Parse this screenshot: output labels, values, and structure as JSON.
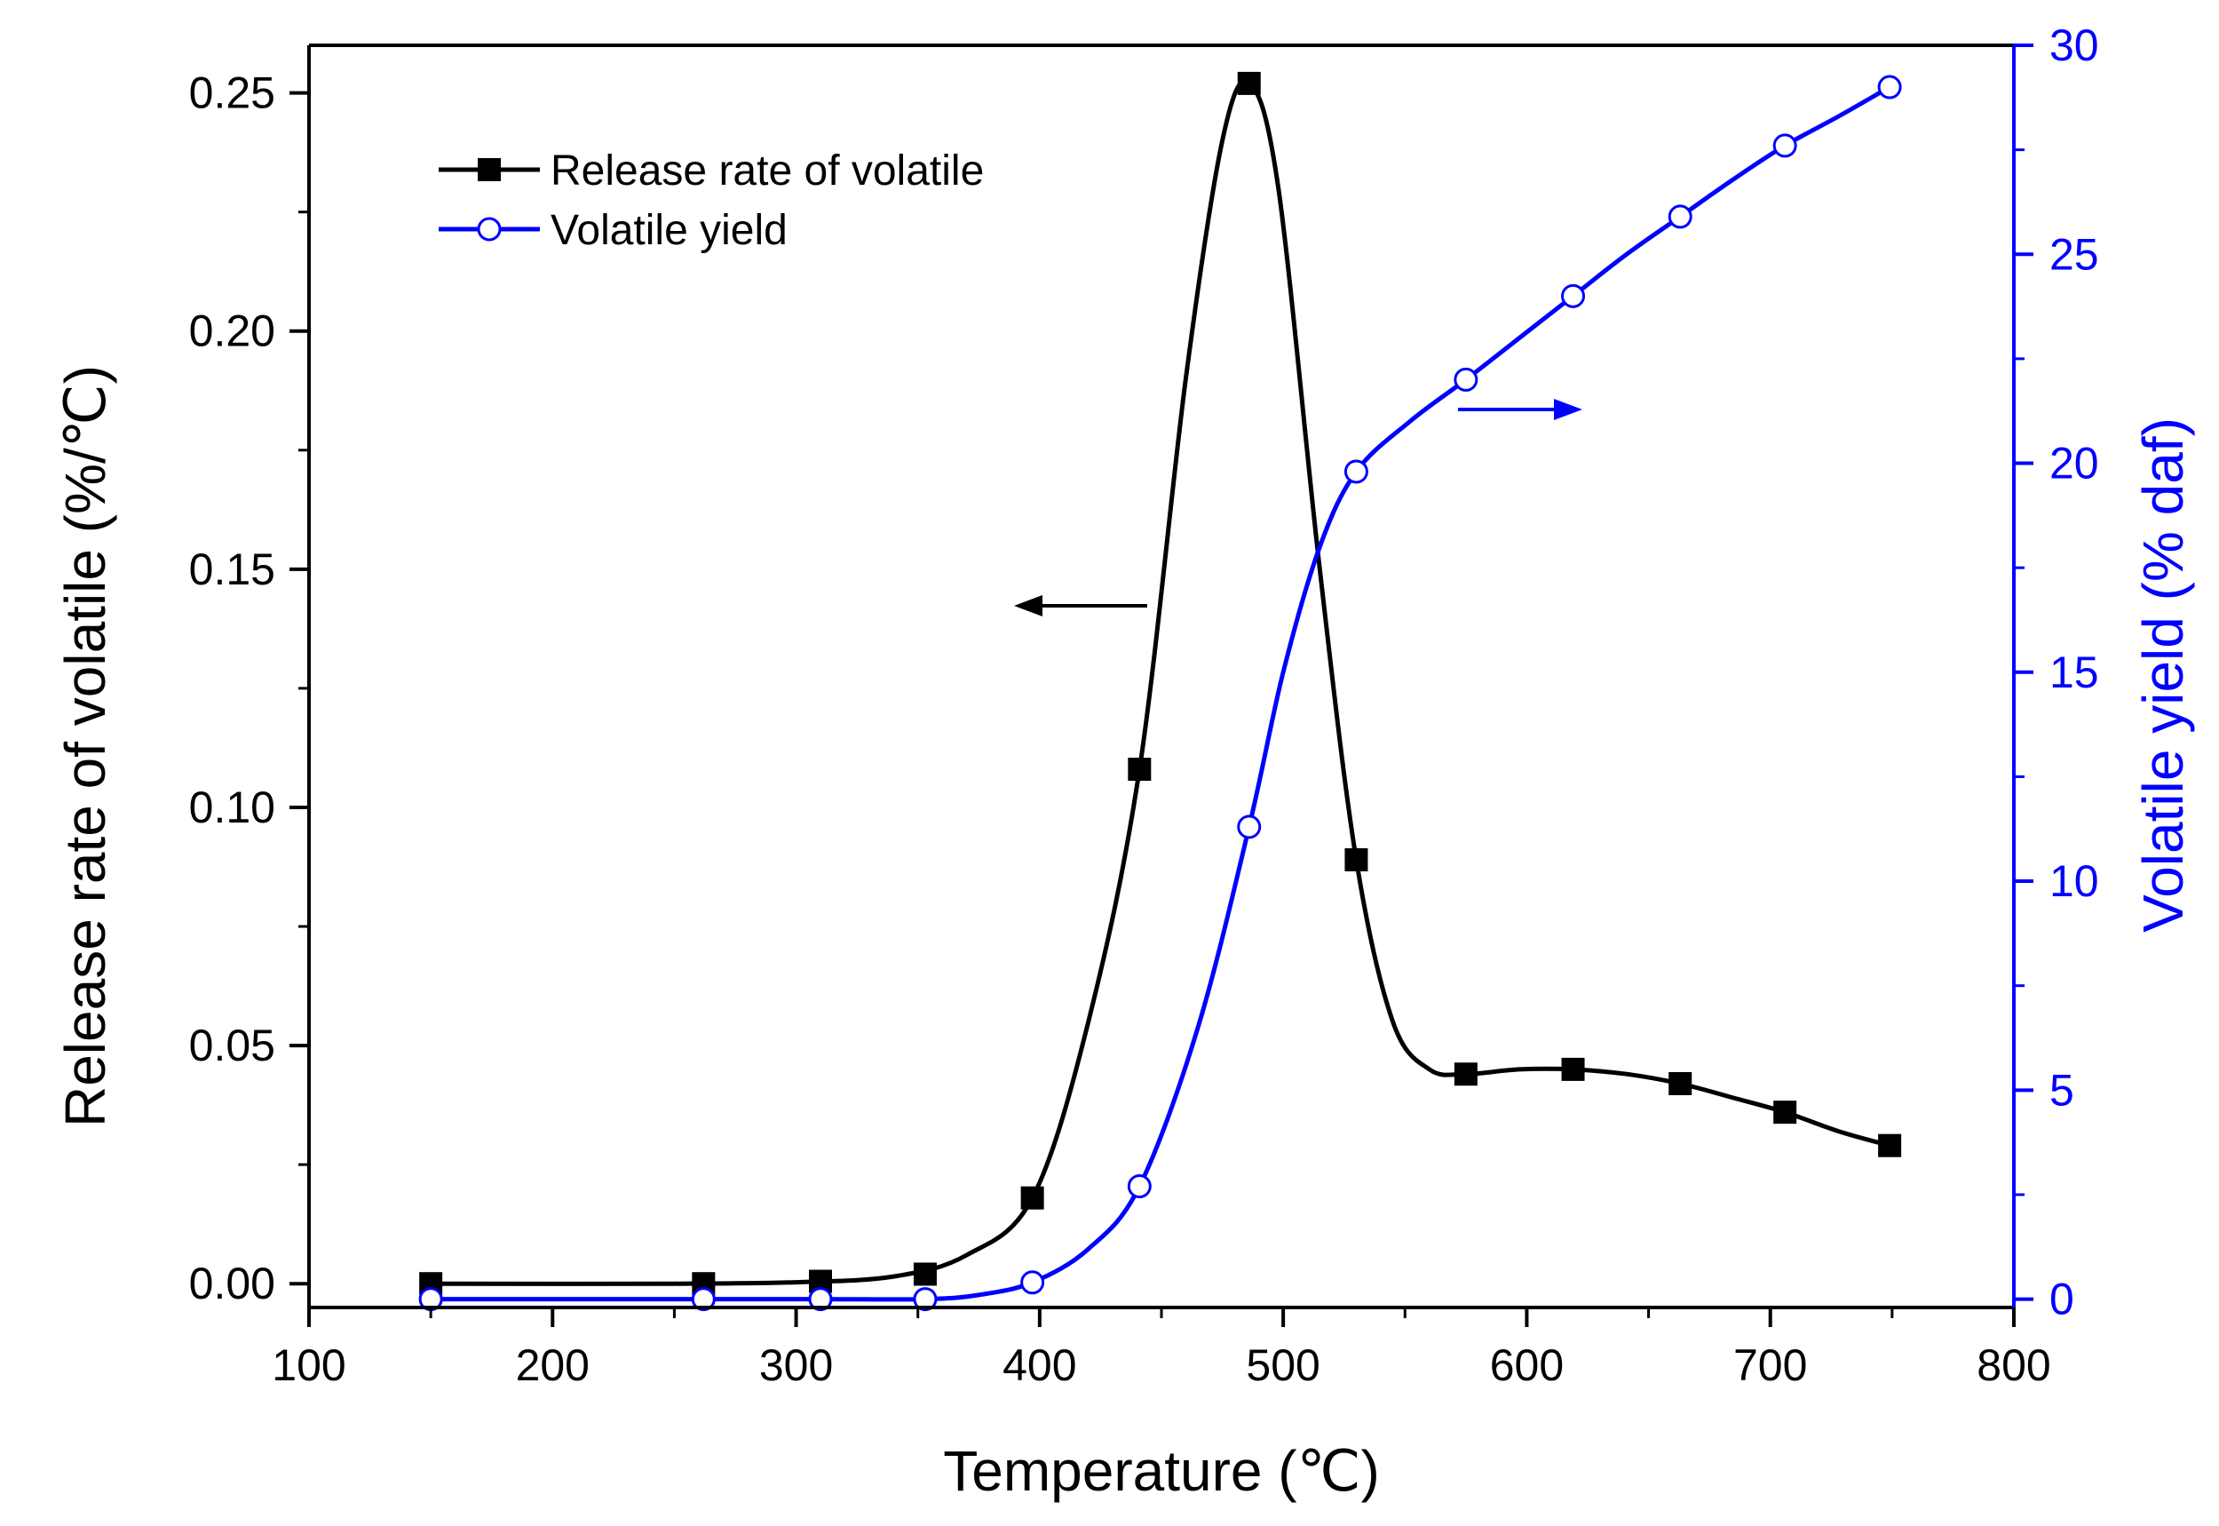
{
  "chart_data": {
    "type": "line",
    "title": "",
    "xlabel": "Temperature (℃)",
    "xlim": [
      100,
      800
    ],
    "x_ticks": [
      100,
      200,
      300,
      400,
      500,
      600,
      700,
      800
    ],
    "x_tick_labels": [
      "100",
      "200",
      "300",
      "400",
      "500",
      "600",
      "700",
      "800"
    ],
    "y_left": {
      "label": "Release rate of volatile (%/℃)",
      "lim": [
        -0.005,
        0.26
      ],
      "ticks": [
        0,
        0.05,
        0.1,
        0.15,
        0.2,
        0.25
      ],
      "tick_labels": [
        "0.00",
        "0.05",
        "0.10",
        "0.15",
        "0.20",
        "0.25"
      ],
      "color": "#000000"
    },
    "y_right": {
      "label": "Volatile yield (% daf)",
      "lim": [
        -0.2,
        30
      ],
      "ticks": [
        0,
        5,
        10,
        15,
        20,
        25,
        30
      ],
      "tick_labels": [
        "0",
        "5",
        "10",
        "15",
        "20",
        "25",
        "30"
      ],
      "color": "#0000ff"
    },
    "series": [
      {
        "name": "Release rate of volatile",
        "axis": "left",
        "marker": "filled-square",
        "color": "#000000",
        "x": [
          150,
          262,
          310,
          353,
          397,
          441,
          486,
          530,
          575,
          619,
          663,
          706,
          749
        ],
        "values": [
          0.0,
          0.0,
          0.0005,
          0.002,
          0.018,
          0.108,
          0.252,
          0.089,
          0.044,
          0.045,
          0.042,
          0.036,
          0.029
        ],
        "curve_x": [
          150,
          250,
          300,
          340,
          370,
          397,
          420,
          441,
          460,
          475,
          486,
          498,
          515,
          530,
          545,
          560,
          575,
          597,
          619,
          641,
          663,
          685,
          706,
          728,
          749
        ],
        "curve_y": [
          0.0,
          0.0,
          0.0003,
          0.0015,
          0.006,
          0.018,
          0.055,
          0.108,
          0.19,
          0.24,
          0.252,
          0.23,
          0.15,
          0.089,
          0.055,
          0.045,
          0.044,
          0.045,
          0.045,
          0.044,
          0.042,
          0.039,
          0.036,
          0.032,
          0.029
        ]
      },
      {
        "name": "Volatile yield",
        "axis": "right",
        "marker": "open-circle",
        "color": "#0000ff",
        "x": [
          150,
          262,
          310,
          353,
          397,
          441,
          486,
          530,
          575,
          619,
          663,
          706,
          749
        ],
        "values": [
          0.0,
          0.0,
          0.0,
          0.0,
          0.4,
          2.7,
          11.3,
          19.8,
          22.0,
          24.0,
          25.9,
          27.6,
          29.0
        ],
        "curve_x": [
          150,
          262,
          310,
          353,
          375,
          397,
          420,
          441,
          465,
          486,
          500,
          515,
          530,
          552,
          575,
          597,
          619,
          641,
          663,
          685,
          706,
          728,
          749
        ],
        "curve_y": [
          0.0,
          0.0,
          0.0,
          0.0,
          0.1,
          0.4,
          1.2,
          2.7,
          6.5,
          11.3,
          15.0,
          18.0,
          19.8,
          21.0,
          22.0,
          23.0,
          24.0,
          25.0,
          25.9,
          26.8,
          27.6,
          28.3,
          29.0
        ]
      }
    ],
    "legend": {
      "position": "top-left",
      "entries": [
        "Release rate of volatile",
        "Volatile yield"
      ]
    },
    "annotations": [
      {
        "type": "arrow",
        "direction": "left",
        "points_to": "left axis",
        "color": "#000000"
      },
      {
        "type": "arrow",
        "direction": "right",
        "points_to": "right axis",
        "color": "#0000ff"
      }
    ],
    "grid": false
  }
}
